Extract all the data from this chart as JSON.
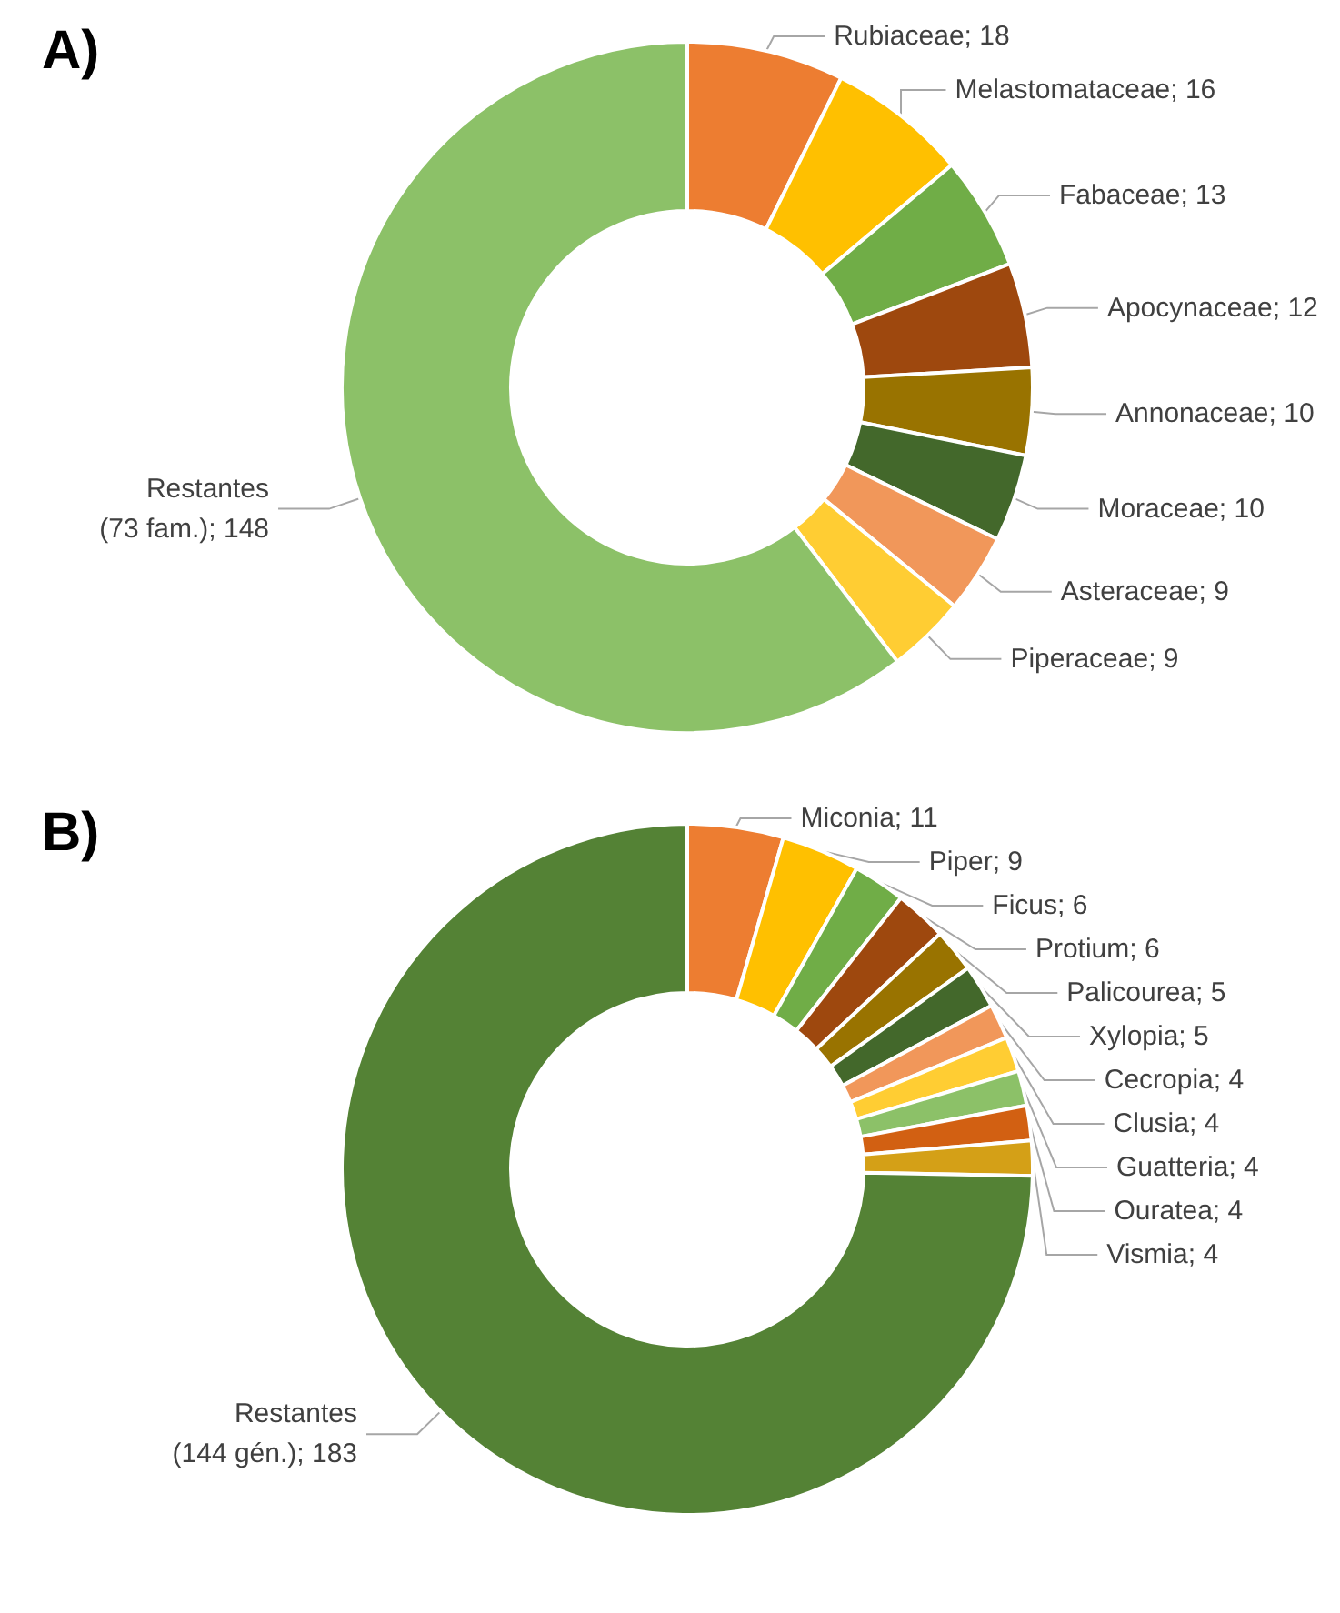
{
  "chart_data": [
    {
      "type": "donut",
      "title": "A)",
      "categories": [
        "Rubiaceae",
        "Melastomataceae",
        "Fabaceae",
        "Apocynaceae",
        "Annonaceae",
        "Moraceae",
        "Asteraceae",
        "Piperaceae",
        "Restantes (73 fam.)"
      ],
      "values": [
        18,
        16,
        13,
        12,
        10,
        10,
        9,
        9,
        148
      ],
      "value_labels": [
        "18",
        "16",
        "13",
        "12",
        "10",
        "10",
        "9",
        "9",
        "148"
      ],
      "colors": [
        "#ed7d31",
        "#ffc000",
        "#70ad47",
        "#9e480e",
        "#997300",
        "#43682b",
        "#f1975a",
        "#ffcd33",
        "#8cc168"
      ],
      "legend": false
    },
    {
      "type": "donut",
      "title": "B)",
      "categories": [
        "Miconia",
        "Piper",
        "Ficus",
        "Protium",
        "Palicourea",
        "Xylopia",
        "Cecropia",
        "Clusia",
        "Guatteria",
        "Ouratea",
        "Vismia",
        "Restantes (144 gén.)"
      ],
      "values": [
        11,
        9,
        6,
        6,
        5,
        5,
        4,
        4,
        4,
        4,
        4,
        183
      ],
      "value_labels": [
        "11",
        "9",
        "6",
        "6",
        "5",
        "5",
        "4",
        "4",
        "4",
        "4",
        "4",
        "183"
      ],
      "colors": [
        "#ed7d31",
        "#ffc000",
        "#70ad47",
        "#9e480e",
        "#997300",
        "#43682b",
        "#f1975a",
        "#ffcd33",
        "#8cc168",
        "#d26012",
        "#d4a017",
        "#548235"
      ],
      "legend": false
    }
  ]
}
